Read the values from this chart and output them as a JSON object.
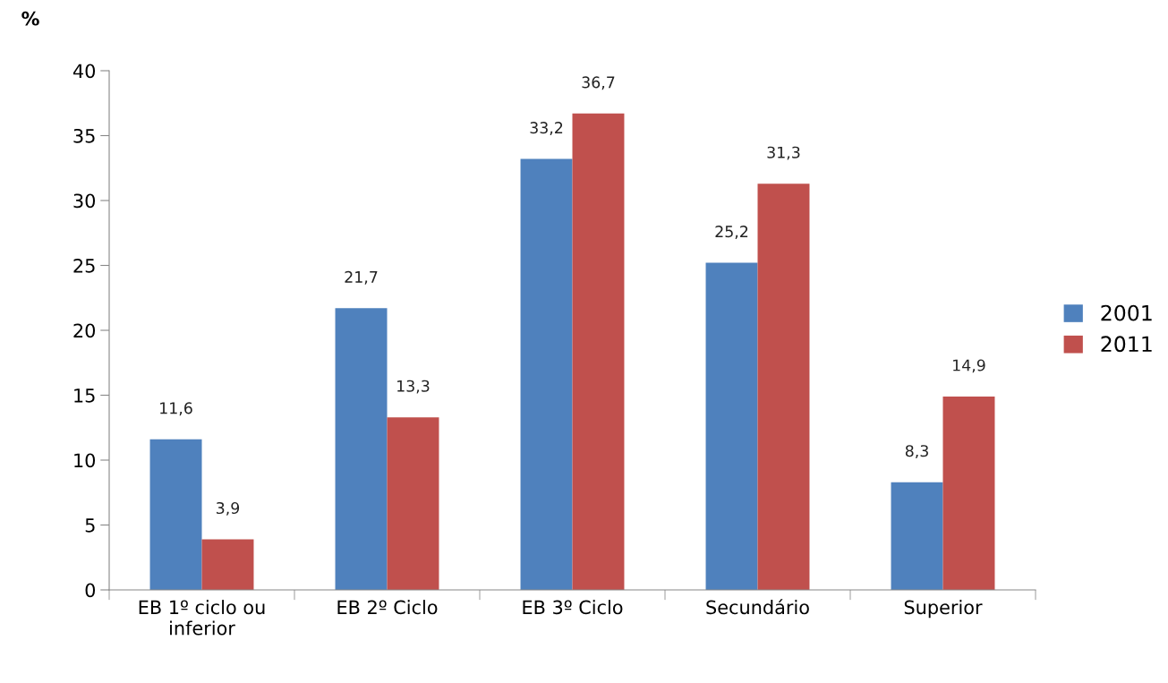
{
  "chart_data": {
    "type": "bar",
    "ylabel": "%",
    "categories": [
      "EB 1º ciclo ou\ninferior",
      "EB 2º Ciclo",
      "EB 3º Ciclo",
      "Secundário",
      "Superior"
    ],
    "series": [
      {
        "name": "2001",
        "color": "#4f81bd",
        "values": [
          11.6,
          21.7,
          33.2,
          25.2,
          8.3
        ],
        "value_labels": [
          "11,6",
          "21,7",
          "33,2",
          "25,2",
          "8,3"
        ]
      },
      {
        "name": "2011",
        "color": "#c0504d",
        "values": [
          3.9,
          13.3,
          36.7,
          31.3,
          14.9
        ],
        "value_labels": [
          "3,9",
          "13,3",
          "36,7",
          "31,3",
          "14,9"
        ]
      }
    ],
    "ylim": [
      0,
      40
    ],
    "yticks": [
      0,
      5,
      10,
      15,
      20,
      25,
      30,
      35,
      40
    ],
    "grid": false,
    "legend": "right"
  }
}
